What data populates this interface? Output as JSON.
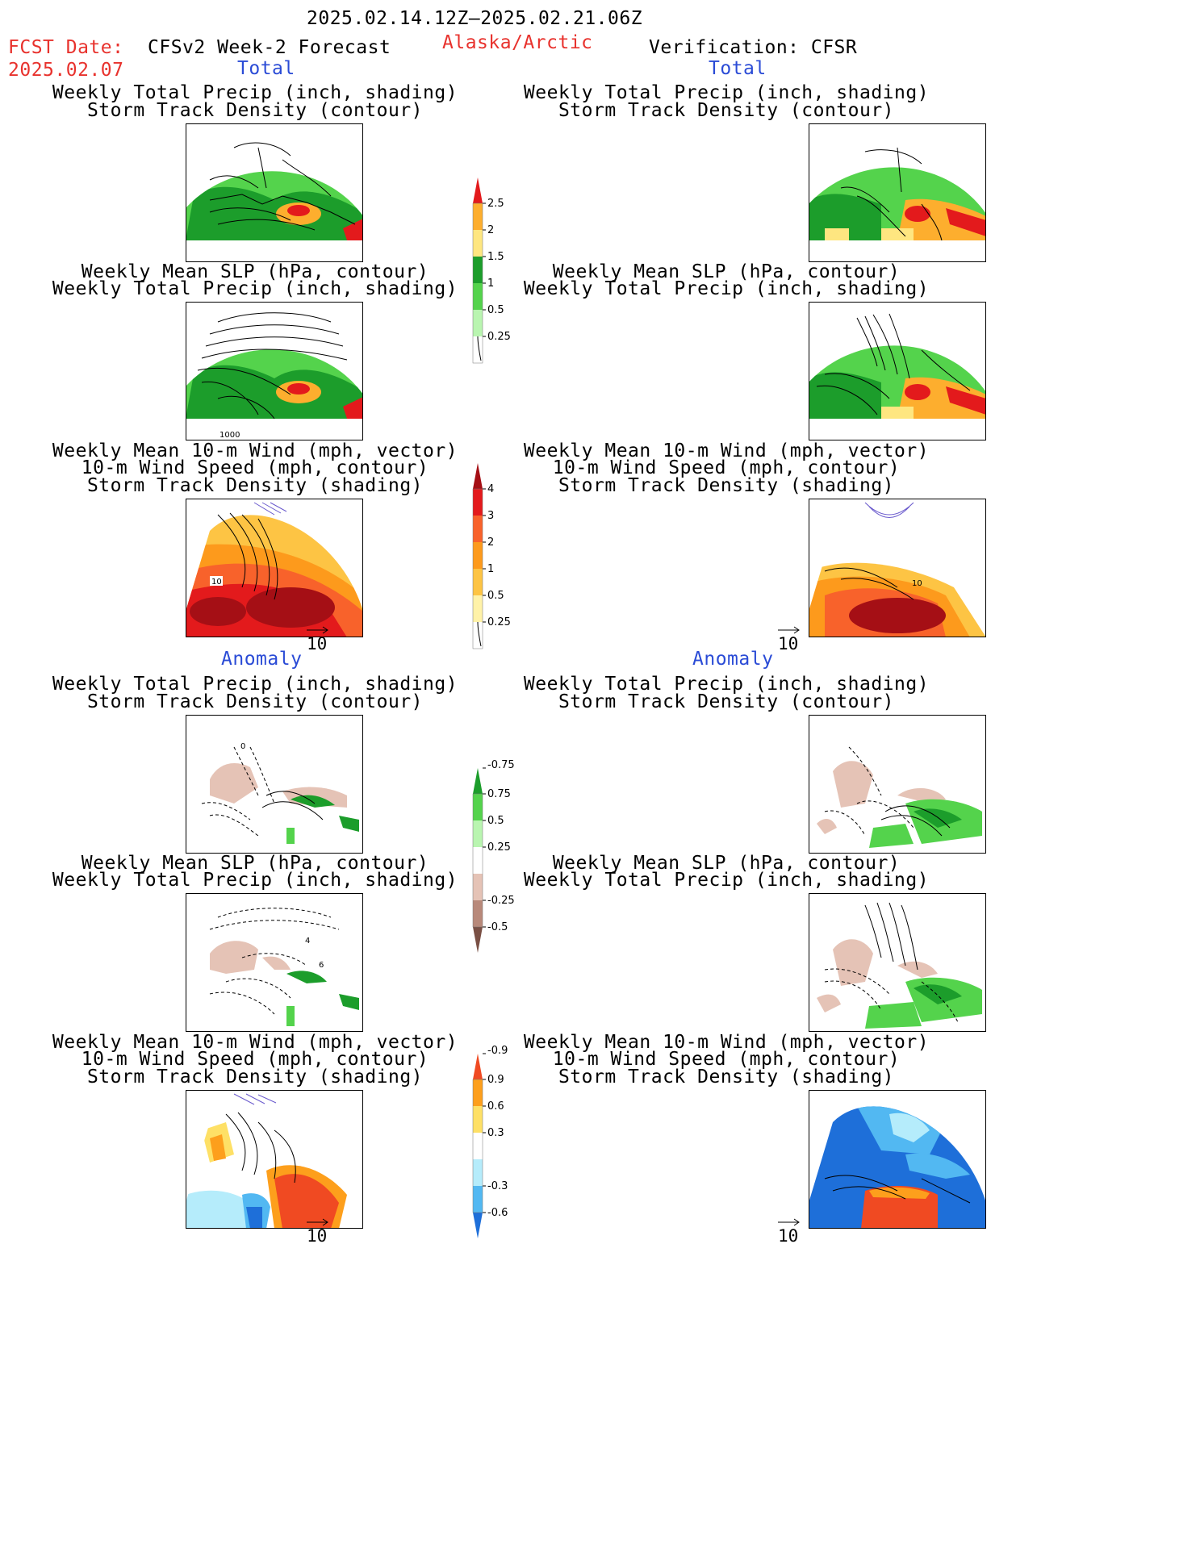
{
  "header": {
    "period": "2025.02.14.12Z–2025.02.21.06Z",
    "fcst_label": "FCST Date:",
    "fcst_date": "2025.02.07",
    "model": "CFSv2 Week-2 Forecast",
    "region": "Alaska/Arctic",
    "verification": "Verification: CFSR"
  },
  "sections": {
    "total_left": "Total",
    "total_right": "Total",
    "anomaly_left": "Anomaly",
    "anomaly_right": "Anomaly"
  },
  "titles": {
    "precip_storm_1": "Weekly Total Precip (inch, shading)",
    "precip_storm_2": "Storm Track Density (contour)",
    "slp_precip_1": "Weekly Mean SLP (hPa, contour)",
    "slp_precip_2": "Weekly Total Precip (inch, shading)",
    "wind_1": "Weekly Mean 10-m Wind (mph, vector)",
    "wind_2": "10-m Wind Speed (mph, contour)",
    "wind_3": "Storm Track Density (shading)"
  },
  "vector_ref": "10",
  "panel_labels": {
    "slp_contour": "1000",
    "wind_contour": "10",
    "wind_contour_right": "10",
    "anom_slp_a": "4",
    "anom_slp_b": "6",
    "anom_storm": "0"
  },
  "colorbars": {
    "precip_total": {
      "labels": [
        "2.5",
        "2",
        "1.5",
        "1",
        "0.5",
        "0.25"
      ],
      "colors": [
        "#e31a1c",
        "#fdae2e",
        "#fee680",
        "#1c9d2b",
        "#54d34c",
        "#b9f5b0"
      ]
    },
    "storm_total": {
      "labels": [
        "4",
        "3",
        "2",
        "1",
        "0.5",
        "0.25"
      ],
      "colors": [
        "#a50f15",
        "#e31a1c",
        "#f8622b",
        "#fd9a1c",
        "#fdc444",
        "#fff2a8"
      ]
    },
    "precip_anom": {
      "labels": [
        "0.75",
        "0.5",
        "0.25",
        "-0.25",
        "-0.5",
        "-0.75"
      ],
      "colors": [
        "#1c9d2b",
        "#54d34c",
        "#b9f5b0",
        "#ffffff",
        "#e5c3b6",
        "#b8897a",
        "#7a5045"
      ]
    },
    "storm_anom": {
      "labels": [
        "0.9",
        "0.6",
        "0.3",
        "-0.3",
        "-0.6",
        "-0.9"
      ],
      "colors": [
        "#f04a22",
        "#fd9f1c",
        "#fee066",
        "#ffffff",
        "#b5ecfb",
        "#52b8f2",
        "#1e6fd9"
      ]
    }
  }
}
